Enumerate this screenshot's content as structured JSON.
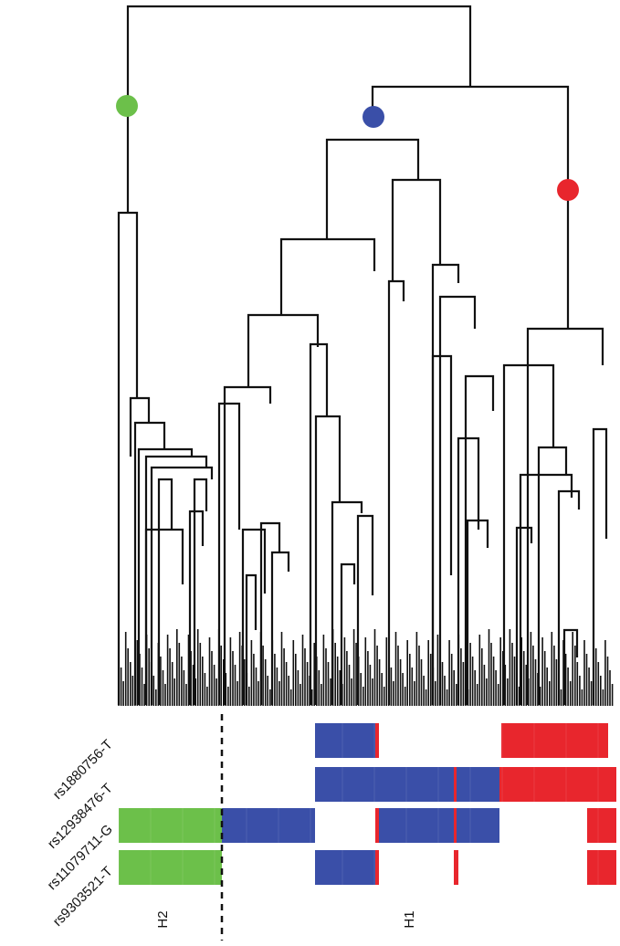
{
  "snps": [
    {
      "id": "rs1880756-T"
    },
    {
      "id": "rs12938476-T"
    },
    {
      "id": "rs11079711-G"
    },
    {
      "id": "rs9303521-T"
    }
  ],
  "haplotypes": {
    "left": "H2",
    "right": "H1"
  },
  "colors": {
    "tree_line": "#111111",
    "clade_green": "#6cc04a",
    "clade_blue": "#3a4fa8",
    "clade_red": "#e8262d",
    "divider": "#111111"
  },
  "clade_markers": [
    {
      "name": "green-clade-marker",
      "color_key": "clade_green"
    },
    {
      "name": "blue-clade-marker",
      "color_key": "clade_blue"
    },
    {
      "name": "red-clade-marker",
      "color_key": "clade_red"
    }
  ]
}
